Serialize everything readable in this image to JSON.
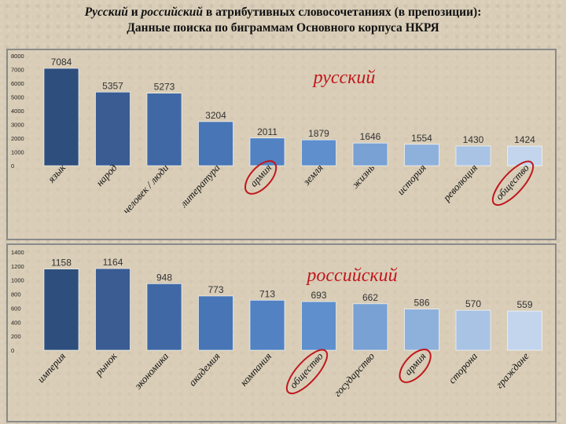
{
  "title": {
    "line1_word1": "Русский",
    "line1_conj": " и ",
    "line1_word2": "российский",
    "line1_rest": " в атрибутивных словосочетаниях (в препозиции):",
    "line2": "Данные поиска по биграммам Основного корпуса НКРЯ"
  },
  "chart_data": [
    {
      "type": "bar",
      "label": "русский",
      "categories": [
        "язык",
        "народ",
        "человек / люди",
        "литература",
        "армия",
        "земля",
        "жизнь",
        "история",
        "революция",
        "общество"
      ],
      "values": [
        7084,
        5357,
        5273,
        3204,
        2011,
        1879,
        1646,
        1554,
        1430,
        1424
      ],
      "yticks": [
        0,
        1000,
        2000,
        3000,
        4000,
        5000,
        6000,
        7000,
        8000
      ],
      "ylim": [
        0,
        8000
      ],
      "circled": [
        "армия",
        "общество"
      ],
      "colors": [
        "#2e4f7e",
        "#3a5c93",
        "#3f68a5",
        "#4775b5",
        "#5282c2",
        "#5f8fcc",
        "#79a1d3",
        "#8eb1dc",
        "#a9c3e4",
        "#c3d5ed"
      ]
    },
    {
      "type": "bar",
      "label": "российский",
      "categories": [
        "империя",
        "рынок",
        "экономика",
        "академия",
        "компания",
        "общество",
        "государство",
        "армия",
        "сторона",
        "граждане"
      ],
      "values": [
        1158,
        1164,
        948,
        773,
        713,
        693,
        662,
        586,
        570,
        559
      ],
      "yticks": [
        0,
        200,
        400,
        600,
        800,
        1000,
        1200,
        1400
      ],
      "ylim": [
        0,
        1400
      ],
      "circled": [
        "общество",
        "армия"
      ],
      "colors": [
        "#2e4f7e",
        "#3a5c93",
        "#3f68a5",
        "#4775b5",
        "#5282c2",
        "#5f8fcc",
        "#79a1d3",
        "#8eb1dc",
        "#a9c3e4",
        "#c3d5ed"
      ]
    }
  ],
  "accent_color": "#c0181d"
}
